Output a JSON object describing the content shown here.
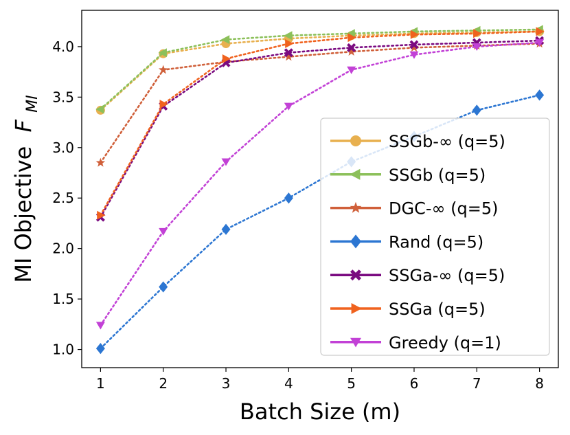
{
  "chart_data": {
    "type": "line",
    "title": "",
    "xlabel": "Batch Size (m)",
    "ylabel": "MI Objective",
    "ylabel_symbol": "F",
    "ylabel_subscript": "MI",
    "x": [
      1,
      2,
      3,
      4,
      5,
      6,
      7,
      8
    ],
    "xlim": [
      0.7,
      8.3
    ],
    "ylim": [
      0.82,
      4.36
    ],
    "xticks": [
      1,
      2,
      3,
      4,
      5,
      6,
      7,
      8
    ],
    "yticks": [
      1.0,
      1.5,
      2.0,
      2.5,
      3.0,
      3.5,
      4.0
    ],
    "yticklabels": [
      "1.0",
      "1.5",
      "2.0",
      "2.5",
      "3.0",
      "3.5",
      "4.0"
    ],
    "grid": false,
    "legend_position": "lower-right",
    "series": [
      {
        "name": "SSGb-∞ (q=5)",
        "color": "#E8B04F",
        "marker": "circle",
        "values": [
          3.37,
          3.93,
          4.03,
          4.08,
          4.11,
          4.13,
          4.14,
          4.15
        ]
      },
      {
        "name": "SSGb (q=5)",
        "color": "#8CC05A",
        "marker": "triangle-left",
        "values": [
          3.38,
          3.94,
          4.07,
          4.11,
          4.13,
          4.15,
          4.16,
          4.17
        ]
      },
      {
        "name": "DGC-∞ (q=5)",
        "color": "#D0603A",
        "marker": "star",
        "values": [
          2.85,
          3.77,
          3.85,
          3.9,
          3.95,
          3.99,
          4.01,
          4.03
        ]
      },
      {
        "name": "Rand (q=5)",
        "color": "#2C76D2",
        "marker": "diamond",
        "values": [
          1.01,
          1.62,
          2.19,
          2.5,
          2.86,
          3.11,
          3.37,
          3.52
        ]
      },
      {
        "name": "SSGa-∞ (q=5)",
        "color": "#7A0A80",
        "marker": "x-filled",
        "values": [
          2.31,
          3.41,
          3.84,
          3.94,
          3.99,
          4.02,
          4.04,
          4.06
        ]
      },
      {
        "name": "SSGa (q=5)",
        "color": "#F0621E",
        "marker": "triangle-right",
        "values": [
          2.33,
          3.43,
          3.88,
          4.03,
          4.09,
          4.12,
          4.13,
          4.15
        ]
      },
      {
        "name": "Greedy (q=1)",
        "color": "#C241D6",
        "marker": "triangle-down",
        "values": [
          1.24,
          2.17,
          2.86,
          3.41,
          3.77,
          3.92,
          4.0,
          4.04
        ]
      }
    ]
  }
}
